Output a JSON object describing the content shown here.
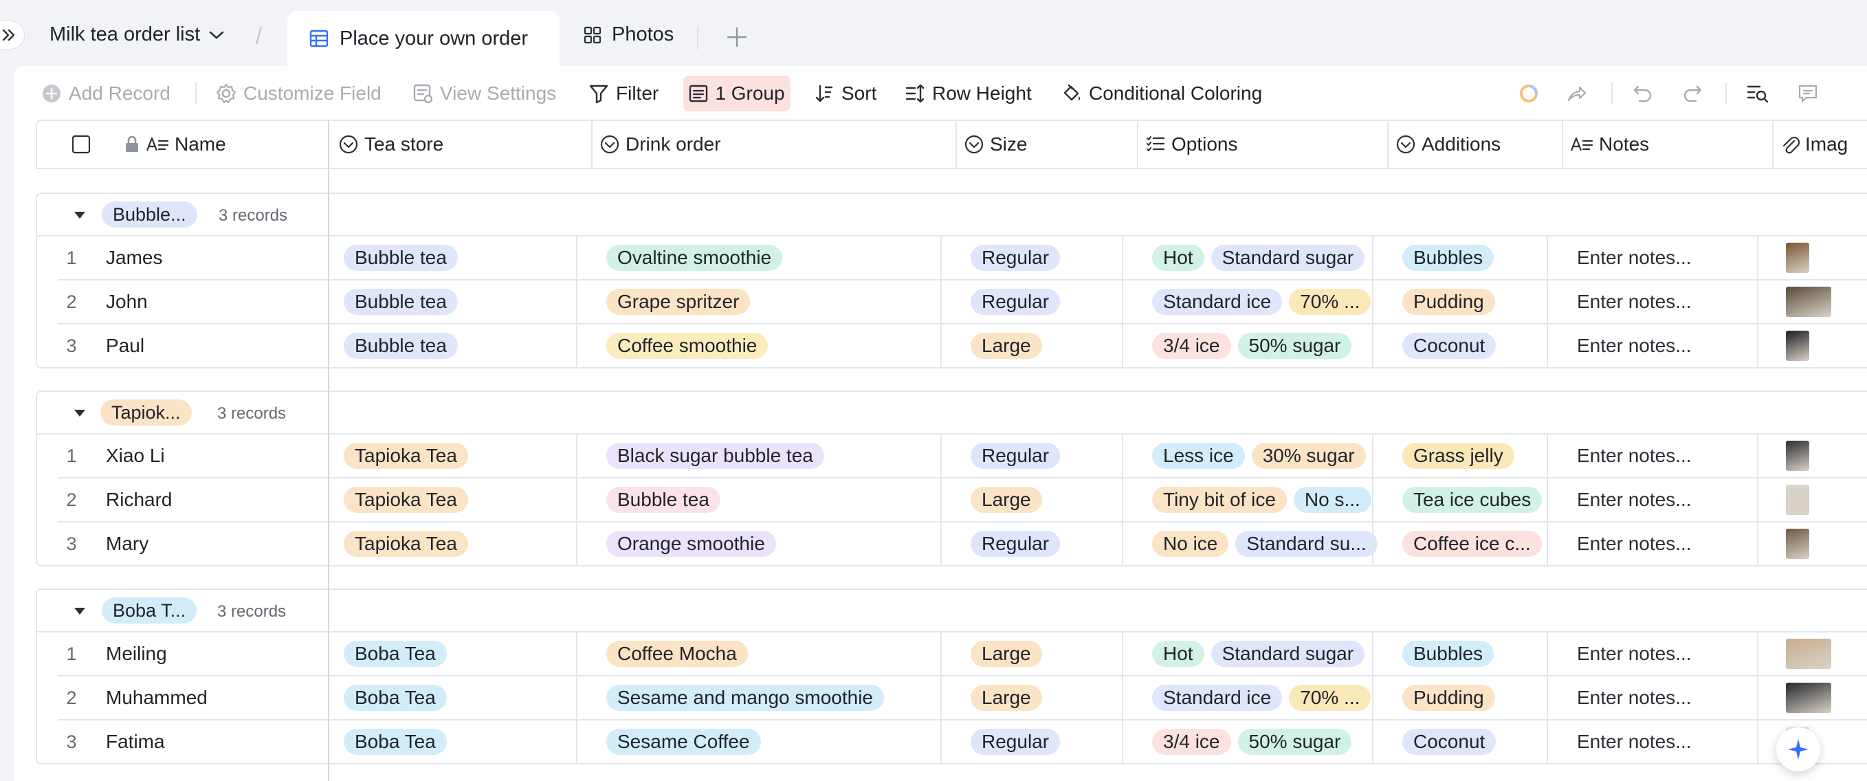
{
  "header": {
    "list_title": "Milk tea order list",
    "tabs": [
      {
        "label": "Place your own order",
        "active": true
      },
      {
        "label": "Photos",
        "active": false
      }
    ]
  },
  "toolbar": {
    "add_record": "Add Record",
    "customize_field": "Customize Field",
    "view_settings": "View Settings",
    "filter": "Filter",
    "group": "1 Group",
    "sort": "Sort",
    "row_height": "Row Height",
    "conditional_coloring": "Conditional Coloring"
  },
  "columns": [
    "Name",
    "Tea store",
    "Drink order",
    "Size",
    "Options",
    "Additions",
    "Notes",
    "Imag"
  ],
  "groups": [
    {
      "tag": "Bubble...",
      "tag_color": "#dfe6fb",
      "count": "3 records",
      "rows": [
        {
          "num": "1",
          "name": "James",
          "store": "Bubble tea",
          "drink": "Ovaltine smoothie",
          "size": "Regular",
          "options": [
            "Hot",
            "Standard sugar"
          ],
          "addition": "Bubbles",
          "notes": "Enter notes..."
        },
        {
          "num": "2",
          "name": "John",
          "store": "Bubble tea",
          "drink": "Grape spritzer",
          "size": "Regular",
          "options": [
            "Standard ice",
            "70% ..."
          ],
          "addition": "Pudding",
          "notes": "Enter notes..."
        },
        {
          "num": "3",
          "name": "Paul",
          "store": "Bubble tea",
          "drink": "Coffee smoothie",
          "size": "Large",
          "options": [
            "3/4 ice",
            "50% sugar"
          ],
          "addition": "Coconut",
          "notes": "Enter notes..."
        }
      ]
    },
    {
      "tag": "Tapiok...",
      "tag_color": "#fbe3c6",
      "count": "3 records",
      "rows": [
        {
          "num": "1",
          "name": "Xiao Li",
          "store": "Tapioka Tea",
          "drink": "Black sugar bubble tea",
          "size": "Regular",
          "options": [
            "Less ice",
            "30% sugar"
          ],
          "addition": "Grass jelly",
          "notes": "Enter notes..."
        },
        {
          "num": "2",
          "name": "Richard",
          "store": "Tapioka Tea",
          "drink": "Bubble tea",
          "size": "Large",
          "options": [
            "Tiny bit of ice",
            "No s..."
          ],
          "addition": "Tea ice cubes",
          "notes": "Enter notes..."
        },
        {
          "num": "3",
          "name": "Mary",
          "store": "Tapioka Tea",
          "drink": "Orange smoothie",
          "size": "Regular",
          "options": [
            "No ice",
            "Standard su..."
          ],
          "addition": "Coffee ice c...",
          "notes": "Enter notes..."
        }
      ]
    },
    {
      "tag": "Boba T...",
      "tag_color": "#d3ecf9",
      "count": "3 records",
      "rows": [
        {
          "num": "1",
          "name": "Meiling",
          "store": "Boba Tea",
          "drink": "Coffee Mocha",
          "size": "Large",
          "options": [
            "Hot",
            "Standard sugar"
          ],
          "addition": "Bubbles",
          "notes": "Enter notes..."
        },
        {
          "num": "2",
          "name": "Muhammed",
          "store": "Boba Tea",
          "drink": "Sesame and mango smoothie",
          "size": "Large",
          "options": [
            "Standard ice",
            "70% ..."
          ],
          "addition": "Pudding",
          "notes": "Enter notes..."
        },
        {
          "num": "3",
          "name": "Fatima",
          "store": "Boba Tea",
          "drink": "Sesame Coffee",
          "size": "Regular",
          "options": [
            "3/4 ice",
            "50% sugar"
          ],
          "addition": "Coconut",
          "notes": "Enter notes..."
        }
      ]
    }
  ],
  "pill_colors": {
    "Bubble tea": "#dfe6fb",
    "Tapioka Tea": "#fbe3c6",
    "Boba Tea": "#d3ecf9",
    "Ovaltine smoothie": "#d2f1e6",
    "Grape spritzer": "#fbe3c6",
    "Coffee smoothie": "#fbecbe",
    "Black sugar bubble tea": "#ebe2fb",
    "Bubble tea ": "#fbe2e8",
    "Orange smoothie": "#ebe2fb",
    "Coffee Mocha": "#fbe3c6",
    "Sesame and mango smoothie": "#d3ecf9",
    "Sesame Coffee": "#d3ecf9",
    "Regular": "#dfe6fb",
    "Large": "#fbe3c6",
    "Hot": "#d2f1e6",
    "Standard sugar": "#dfe6fb",
    "Standard ice": "#dfe6fb",
    "70% ...": "#fbe8b8",
    "3/4 ice": "#fbe2de",
    "50% sugar": "#d2f1e6",
    "Less ice": "#d3ecf9",
    "30% sugar": "#fbe3c6",
    "Tiny bit of ice": "#fbe3c6",
    "No s...": "#d3ecf9",
    "No ice": "#fbe3c6",
    "Standard su...": "#dfe6fb",
    "Bubbles": "#d3ecf9",
    "Pudding": "#fbe3c6",
    "Coconut": "#dfe6fb",
    "Grass jelly": "#fbe8b8",
    "Tea ice cubes": "#d2f1e6",
    "Coffee ice c...": "#fbe2de"
  },
  "thumb_colors": [
    [
      "#7a5530",
      "#5a4a3a",
      "#1c1c22"
    ],
    [
      "#2c2c30",
      "#d8d4cc",
      "#6b5844"
    ],
    [
      "#c9ad8e",
      "#24272d",
      "#e8e8ec"
    ]
  ]
}
